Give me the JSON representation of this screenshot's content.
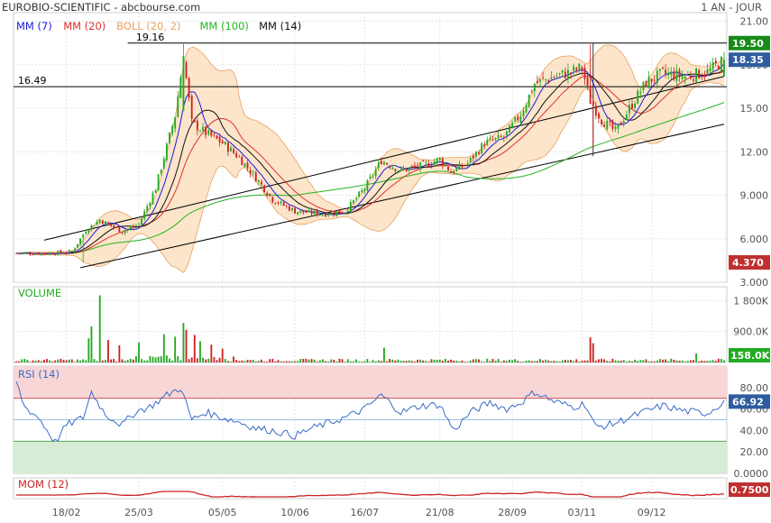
{
  "header": {
    "title": "EUROBIO-SCIENTIFIC - abcbourse.com",
    "period": "1 AN - JOUR"
  },
  "colors": {
    "mm7": "#1a1adb",
    "mm20": "#e03030",
    "boll_fill": "#fbdcb8",
    "boll_line": "#e8a060",
    "mm100": "#22b322",
    "mm14": "#111111",
    "up": "#22aa22",
    "down": "#cc2222",
    "last_price_bg": "#2e5c9e",
    "resistance_bg": "#1a8a1a",
    "low_bg": "#c03030",
    "volume_label": "#22aa22",
    "rsi_line": "#3a6bc8",
    "rsi_high_zone": "#f9d6d6",
    "rsi_low_zone": "#d6ecd6",
    "mom_line": "#cc2222"
  },
  "chart_data": [
    {
      "type": "candlestick",
      "panel": "price",
      "legend": [
        {
          "label": "MM (7)",
          "color": "#1a1adb"
        },
        {
          "label": "MM (20)",
          "color": "#e03030"
        },
        {
          "label": "BOLL (20, 2)",
          "color": "#e8a060"
        },
        {
          "label": "MM (100)",
          "color": "#22b322"
        },
        {
          "label": "MM (14)",
          "color": "#111111"
        }
      ],
      "y_ticks": [
        "21.00",
        "18.00",
        "15.00",
        "12.00",
        "9.000",
        "6.000",
        "3.000"
      ],
      "ylim": [
        3.0,
        21.6
      ],
      "x_ticks": [
        "18/02",
        "25/03",
        "05/05",
        "10/06",
        "16/07",
        "21/08",
        "28/09",
        "03/11",
        "09/12"
      ],
      "x_tick_index": [
        18,
        44,
        74,
        100,
        125,
        152,
        178,
        203,
        228
      ],
      "n_sessions": 255,
      "close_trend_anchors": [
        [
          0,
          5.0
        ],
        [
          10,
          5.0
        ],
        [
          20,
          5.1
        ],
        [
          25,
          6.6
        ],
        [
          30,
          7.3
        ],
        [
          38,
          6.5
        ],
        [
          44,
          7.0
        ],
        [
          50,
          9.5
        ],
        [
          57,
          14.5
        ],
        [
          60,
          18.6
        ],
        [
          63,
          14.0
        ],
        [
          68,
          13.3
        ],
        [
          74,
          12.6
        ],
        [
          80,
          11.6
        ],
        [
          86,
          10.2
        ],
        [
          92,
          8.7
        ],
        [
          100,
          7.9
        ],
        [
          110,
          7.7
        ],
        [
          118,
          7.9
        ],
        [
          125,
          9.5
        ],
        [
          131,
          11.4
        ],
        [
          138,
          10.7
        ],
        [
          145,
          11.0
        ],
        [
          152,
          11.5
        ],
        [
          156,
          10.6
        ],
        [
          162,
          11.2
        ],
        [
          168,
          12.6
        ],
        [
          175,
          13.0
        ],
        [
          181,
          14.6
        ],
        [
          186,
          16.7
        ],
        [
          193,
          17.2
        ],
        [
          199,
          17.5
        ],
        [
          203,
          17.8
        ],
        [
          206,
          15.5
        ],
        [
          210,
          14.2
        ],
        [
          215,
          13.4
        ],
        [
          220,
          15.0
        ],
        [
          226,
          16.8
        ],
        [
          232,
          17.4
        ],
        [
          240,
          17.2
        ],
        [
          248,
          17.5
        ],
        [
          254,
          18.35
        ]
      ],
      "annotations": {
        "resistance_high": {
          "value": 19.5,
          "label": "19.50"
        },
        "peak_label": {
          "value": 19.16,
          "label": "19.16"
        },
        "support_level": {
          "value": 16.49,
          "label": "16.49"
        },
        "last_price": {
          "value": 18.35,
          "label": "18.35"
        },
        "period_low": {
          "value": 4.37,
          "label": "4.370"
        },
        "channel_lower": {
          "start": [
            23,
            4.0
          ],
          "end": [
            254,
            13.9
          ]
        },
        "channel_upper": {
          "start": [
            10,
            5.9
          ],
          "end": [
            254,
            17.2
          ]
        },
        "vertical_marker_index": 207
      },
      "grid": true
    },
    {
      "type": "bar",
      "panel": "volume",
      "title": "VOLUME",
      "y_ticks": [
        "1 800K",
        "900.0K"
      ],
      "ylim": [
        0,
        2200
      ],
      "unit": "K",
      "last_value_label": "158.0K",
      "spikes": [
        [
          26,
          700
        ],
        [
          27,
          1050
        ],
        [
          30,
          1950
        ],
        [
          33,
          650
        ],
        [
          37,
          500
        ],
        [
          44,
          580
        ],
        [
          53,
          820
        ],
        [
          57,
          750
        ],
        [
          60,
          1150
        ],
        [
          61,
          950
        ],
        [
          64,
          800
        ],
        [
          66,
          620
        ],
        [
          70,
          520
        ],
        [
          74,
          400
        ],
        [
          132,
          430
        ],
        [
          206,
          730
        ],
        [
          207,
          560
        ],
        [
          244,
          260
        ]
      ],
      "grid": true
    },
    {
      "type": "line",
      "panel": "rsi",
      "title": "RSI (14)",
      "y_ticks": [
        "80.00",
        "60.00",
        "40.00",
        "20.00",
        "0.0000"
      ],
      "ylim": [
        0,
        100
      ],
      "zones": {
        "overbought": 70,
        "oversold": 30,
        "mid": 50
      },
      "last_value_label": "66.92",
      "anchors": [
        [
          0,
          85
        ],
        [
          3,
          62
        ],
        [
          8,
          52
        ],
        [
          14,
          29
        ],
        [
          18,
          45
        ],
        [
          24,
          52
        ],
        [
          27,
          76
        ],
        [
          32,
          55
        ],
        [
          38,
          45
        ],
        [
          43,
          58
        ],
        [
          48,
          62
        ],
        [
          54,
          73
        ],
        [
          59,
          80
        ],
        [
          63,
          50
        ],
        [
          68,
          57
        ],
        [
          74,
          52
        ],
        [
          80,
          48
        ],
        [
          86,
          42
        ],
        [
          92,
          40
        ],
        [
          100,
          35
        ],
        [
          106,
          42
        ],
        [
          112,
          47
        ],
        [
          118,
          52
        ],
        [
          125,
          60
        ],
        [
          131,
          73
        ],
        [
          138,
          57
        ],
        [
          145,
          63
        ],
        [
          152,
          64
        ],
        [
          157,
          40
        ],
        [
          163,
          57
        ],
        [
          170,
          66
        ],
        [
          176,
          60
        ],
        [
          181,
          66
        ],
        [
          186,
          76
        ],
        [
          193,
          67
        ],
        [
          200,
          62
        ],
        [
          204,
          65
        ],
        [
          208,
          43
        ],
        [
          214,
          46
        ],
        [
          220,
          52
        ],
        [
          226,
          58
        ],
        [
          232,
          63
        ],
        [
          240,
          58
        ],
        [
          248,
          56
        ],
        [
          254,
          67
        ]
      ],
      "grid": true
    },
    {
      "type": "area",
      "panel": "momentum",
      "title": "MOM (12)",
      "last_value_label": "0.7500",
      "grid": false
    }
  ]
}
